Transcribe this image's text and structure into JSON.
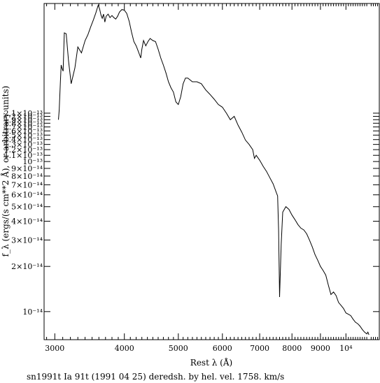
{
  "chart_data": {
    "type": "line",
    "xlabel": "Rest λ (Å)",
    "ylabel": "f_λ (ergs/(s cm**2 Å), or arbitrary units)",
    "caption": "sn1991t Ia 91t (1991 04 25) deredsh. by hel. vel.  1758. km/s",
    "x_scale": "log",
    "y_scale": "log",
    "xlim": [
      2870,
      11480
    ],
    "ylim": [
      6.5e-15,
      1.13e-12
    ],
    "x_ticks": [
      {
        "value": 3000,
        "label": "3000"
      },
      {
        "value": 4000,
        "label": "4000"
      },
      {
        "value": 5000,
        "label": "5000"
      },
      {
        "value": 6000,
        "label": "6000"
      },
      {
        "value": 7000,
        "label": "7000"
      },
      {
        "value": 8000,
        "label": "8000"
      },
      {
        "value": 9000,
        "label": "9000"
      },
      {
        "value": 10000,
        "label": "10⁴"
      }
    ],
    "y_ticks": [
      {
        "value": 1e-14,
        "label": "10⁻¹⁴"
      },
      {
        "value": 2e-14,
        "label": "2×10⁻¹⁴"
      },
      {
        "value": 3e-14,
        "label": "3×10⁻¹⁴"
      },
      {
        "value": 4e-14,
        "label": "4×10⁻¹⁴"
      },
      {
        "value": 5e-14,
        "label": "5×10⁻¹⁴"
      },
      {
        "value": 6e-14,
        "label": "6×10⁻¹⁴"
      },
      {
        "value": 7e-14,
        "label": "7×10⁻¹⁴"
      },
      {
        "value": 8e-14,
        "label": "8×10⁻¹⁴"
      },
      {
        "value": 9e-14,
        "label": "9×10⁻¹⁴"
      },
      {
        "value": 1e-13,
        "label": "10⁻¹³"
      },
      {
        "value": 1.1e-13,
        "label": "1.1×10⁻¹³"
      },
      {
        "value": 1.2e-13,
        "label": "1.2×10⁻¹³"
      },
      {
        "value": 1.3e-13,
        "label": "1.3×10⁻¹³"
      },
      {
        "value": 1.4e-13,
        "label": "1.4×10⁻¹³"
      },
      {
        "value": 1.5e-13,
        "label": "1.5×10⁻¹³"
      },
      {
        "value": 1.6e-13,
        "label": "1.6×10⁻¹³"
      },
      {
        "value": 1.7e-13,
        "label": "1.7×10⁻¹³"
      },
      {
        "value": 1.8e-13,
        "label": "1.8×10⁻¹³"
      },
      {
        "value": 1.9e-13,
        "label": "1.9×10⁻¹³"
      },
      {
        "value": 2e-13,
        "label": "2×10⁻¹³"
      },
      {
        "value": 2.1e-13,
        "label": "2.1×10⁻¹³"
      }
    ],
    "series": [
      {
        "x": [
          3045,
          3055,
          3070,
          3080,
          3090,
          3105,
          3120,
          3145,
          3175,
          3210,
          3260,
          3300,
          3350,
          3400,
          3440,
          3480,
          3520,
          3555,
          3590,
          3610,
          3630,
          3650,
          3670,
          3690,
          3710,
          3740,
          3770,
          3800,
          3830,
          3860,
          3890,
          3920,
          3960,
          4000,
          4040,
          4080,
          4120,
          4160,
          4200,
          4240,
          4280,
          4300,
          4330,
          4370,
          4410,
          4450,
          4500,
          4550,
          4600,
          4650,
          4700,
          4750,
          4800,
          4850,
          4900,
          4950,
          5000,
          5050,
          5100,
          5150,
          5200,
          5300,
          5400,
          5500,
          5600,
          5700,
          5800,
          5900,
          6000,
          6100,
          6200,
          6300,
          6400,
          6500,
          6600,
          6700,
          6800,
          6850,
          6900,
          7000,
          7100,
          7200,
          7300,
          7400,
          7500,
          7540,
          7570,
          7600,
          7650,
          7700,
          7800,
          7900,
          8000,
          8100,
          8200,
          8300,
          8400,
          8500,
          8600,
          8700,
          8800,
          8900,
          9000,
          9100,
          9200,
          9300,
          9400,
          9500,
          9600,
          9700,
          9800,
          9900,
          10000,
          10100,
          10200,
          10300,
          10400,
          10500,
          10600,
          10700,
          10800,
          10900,
          10950,
          11000
        ],
        "y": [
          1.9e-13,
          2.2e-13,
          3.4e-13,
          4.4e-13,
          4.2e-13,
          4e-13,
          7.2e-13,
          7.1e-13,
          4.7e-13,
          3.3e-13,
          4.2e-13,
          5.8e-13,
          5.3e-13,
          6.4e-13,
          7e-13,
          7.9e-13,
          8.8e-13,
          9.8e-13,
          1.1e-12,
          1.04e-12,
          9.5e-13,
          9e-13,
          9.6e-13,
          8.5e-13,
          9.3e-13,
          9.6e-13,
          9.1e-13,
          9.4e-13,
          9.1e-13,
          8.9e-13,
          9.3e-13,
          9.9e-13,
          1.03e-12,
          1.02e-12,
          9.7e-13,
          8.6e-13,
          7.3e-13,
          6.3e-13,
          5.9e-13,
          5.4e-13,
          4.9e-13,
          5.6e-13,
          6.4e-13,
          5.9e-13,
          6.3e-13,
          6.6e-13,
          6.4e-13,
          6.3e-13,
          5.6e-13,
          4.9e-13,
          4.4e-13,
          3.9e-13,
          3.4e-13,
          3.1e-13,
          2.9e-13,
          2.5e-13,
          2.4e-13,
          2.7e-13,
          3.3e-13,
          3.6e-13,
          3.6e-13,
          3.4e-13,
          3.4e-13,
          3.3e-13,
          3e-13,
          2.8e-13,
          2.6e-13,
          2.4e-13,
          2.3e-13,
          2.1e-13,
          1.9e-13,
          2e-13,
          1.75e-13,
          1.57e-13,
          1.39e-13,
          1.3e-13,
          1.2e-13,
          1.05e-13,
          1.1e-13,
          1.02e-13,
          9.3e-14,
          8.6e-14,
          7.8e-14,
          7.1e-14,
          6.2e-14,
          5.9e-14,
          3.5e-14,
          1.25e-14,
          2.8e-14,
          4.6e-14,
          5e-14,
          4.8e-14,
          4.4e-14,
          4.1e-14,
          3.8e-14,
          3.6e-14,
          3.5e-14,
          3.3e-14,
          3e-14,
          2.7e-14,
          2.4e-14,
          2.2e-14,
          2e-14,
          1.88e-14,
          1.75e-14,
          1.5e-14,
          1.3e-14,
          1.35e-14,
          1.28e-14,
          1.15e-14,
          1.1e-14,
          1.05e-14,
          9.8e-15,
          9.6e-15,
          9.4e-15,
          8.9e-15,
          8.5e-15,
          8.3e-15,
          8e-15,
          7.6e-15,
          7.3e-15,
          7.1e-15,
          7.3e-15,
          7e-15
        ]
      }
    ]
  }
}
